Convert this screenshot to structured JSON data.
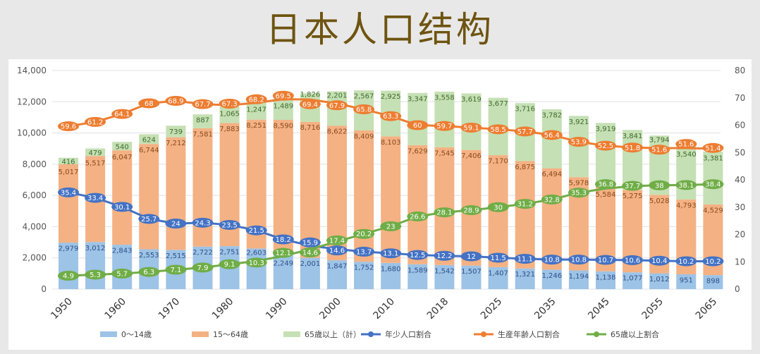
{
  "title": "日本人口结构",
  "chart_data": {
    "type": "bar",
    "stacked": true,
    "title": "日本人口结构",
    "x_tick_labels": [
      "1950",
      "1960",
      "1970",
      "1980",
      "1990",
      "2000",
      "2010",
      "2018",
      "2025",
      "2035",
      "2045",
      "2055",
      "2065"
    ],
    "y_left": {
      "min": 0,
      "max": 14000,
      "ticks": [
        "0",
        "2,000",
        "4,000",
        "6,000",
        "8,000",
        "10,000",
        "12,000",
        "14,000"
      ]
    },
    "y_right": {
      "min": 0,
      "max": 80,
      "ticks": [
        "0",
        "10",
        "20",
        "30",
        "40",
        "50",
        "60",
        "70",
        "80"
      ]
    },
    "grid": true,
    "legend_position": "bottom",
    "bar_series": [
      {
        "name": "0～14歳",
        "color": "#9dc3e6",
        "label_color": "#2f4f8a",
        "values": [
          2979,
          3012,
          2843,
          2553,
          2515,
          2722,
          2751,
          2603,
          2249,
          2001,
          1847,
          1752,
          1680,
          1589,
          1542,
          1507,
          1407,
          1321,
          1246,
          1194,
          1138,
          1077,
          1012,
          951,
          898
        ]
      },
      {
        "name": "15～64歳",
        "color": "#f4b183",
        "label_color": "#8a4a1a",
        "values": [
          5017,
          5517,
          6047,
          6744,
          7212,
          7581,
          7883,
          8251,
          8590,
          8716,
          8622,
          8409,
          8103,
          7629,
          7545,
          7406,
          7170,
          6875,
          6494,
          5978,
          5584,
          5275,
          5028,
          4793,
          4529
        ]
      },
      {
        "name": "65歳以上（計）",
        "color": "#c5e0b4",
        "label_color": "#3f6a2a",
        "values": [
          416,
          479,
          540,
          624,
          739,
          887,
          1065,
          1247,
          1489,
          1826,
          2201,
          2567,
          2925,
          3347,
          3558,
          3619,
          3677,
          3716,
          3782,
          3921,
          3919,
          3841,
          3794,
          3540,
          3381
        ]
      }
    ],
    "line_series": [
      {
        "name": "年少人口割合",
        "color": "#4472c4",
        "values": [
          35.4,
          33.4,
          30.1,
          25.7,
          24,
          24.3,
          23.5,
          21.5,
          18.2,
          15.9,
          14.6,
          13.7,
          13.1,
          12.5,
          12.2,
          12,
          11.5,
          11.1,
          10.8,
          10.8,
          10.7,
          10.6,
          10.4,
          10.2,
          10.2
        ]
      },
      {
        "name": "生産年齢人口割合",
        "color": "#ed7d31",
        "values": [
          59.6,
          61.2,
          64.1,
          68,
          68.9,
          67.7,
          67.3,
          68.2,
          69.5,
          69.4,
          67.9,
          65.8,
          63.3,
          60,
          59.7,
          59.1,
          58.5,
          57.7,
          56.4,
          53.9,
          52.5,
          51.8,
          51.6,
          51.6,
          51.4
        ]
      },
      {
        "name": "65歳以上割合",
        "color": "#70ad47",
        "values": [
          4.9,
          5.3,
          5.7,
          6.3,
          7.1,
          7.9,
          9.1,
          10.3,
          12.1,
          14.6,
          17.4,
          20.2,
          23,
          26.6,
          28.1,
          28.9,
          30,
          31.2,
          32.8,
          35.3,
          36.8,
          37.7,
          38,
          38.1,
          38.4
        ]
      }
    ]
  }
}
